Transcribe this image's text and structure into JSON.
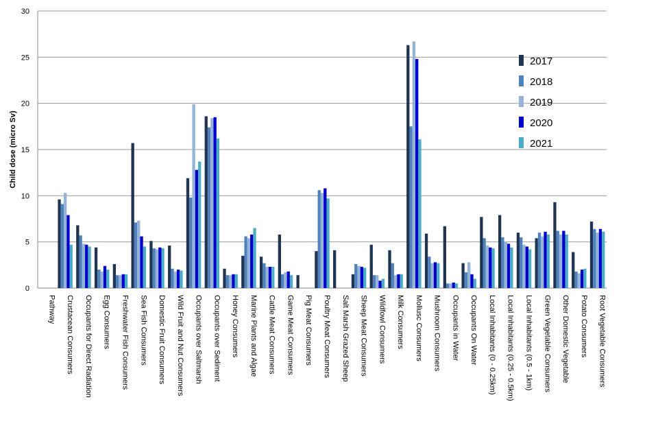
{
  "chart_data": {
    "type": "bar",
    "title": "",
    "xlabel": "",
    "ylabel": "Child  dose (micro Sv)",
    "ylim": [
      0,
      30
    ],
    "yticks": [
      0,
      5,
      10,
      15,
      20,
      25,
      30
    ],
    "grid": "horizontal",
    "legend_position": "right",
    "colors": [
      "#1f3552",
      "#4f81bd",
      "#95b3d7",
      "#0000cc",
      "#4bacc6"
    ],
    "categories": [
      "Pathway",
      "Crustacean Consumers",
      "Occupants for Direct Radiation",
      "Egg Consumers",
      "Freshwater Fish Consumers",
      "Sea Fish Consumers",
      "Domestic Fruit Consumers",
      "Wild Fruit and Nut Consumers",
      "Occupants over Saltmarsh",
      "Occupants over Sediment",
      "Honey Consumers",
      "Marine Plants and Algae",
      "Cattle Meat Consumers",
      "Game Meat Consumers",
      "Pig Meat Consumers",
      "Poultry Meat Consumers",
      "Salt Marsh Grazed Sheep",
      "Sheep Meat Consumers",
      "Wildfowl Consumers",
      "Milk Consumers",
      "Mollusc Consumers",
      "Mushroom Consumers",
      "Occupants in Water",
      "Occupants On Water",
      "Local Inhabitants (0 - 0.25km)",
      "Local Inhabitants (0.25 - 0.5km)",
      "Local Inhabitants (0.5 - 1km)",
      "Green Vegetable Consumers",
      "Other Domestic Vegetable",
      "Potato Consumers",
      "Root Vegetable Consumers"
    ],
    "series": [
      {
        "name": "2017",
        "values": [
          0,
          9.6,
          6.8,
          4.4,
          2.6,
          15.7,
          5.1,
          4.6,
          11.9,
          18.6,
          2.1,
          3.5,
          3.4,
          5.8,
          1.4,
          4.0,
          4.1,
          1.5,
          4.7,
          4.1,
          26.3,
          5.9,
          6.7,
          2.7,
          7.7,
          7.9,
          6.0,
          5.4,
          9.3,
          3.9,
          7.2
        ]
      },
      {
        "name": "2018",
        "values": [
          0,
          9.1,
          5.7,
          2.0,
          1.4,
          7.1,
          4.3,
          2.1,
          9.8,
          17.4,
          1.4,
          5.6,
          2.7,
          1.5,
          0,
          10.6,
          0,
          2.6,
          1.4,
          2.7,
          17.5,
          3.4,
          0.5,
          1.7,
          5.4,
          5.5,
          5.5,
          6.0,
          6.2,
          1.8,
          6.4
        ]
      },
      {
        "name": "2019",
        "values": [
          0,
          10.3,
          4.8,
          1.8,
          1.4,
          7.3,
          4.2,
          1.8,
          19.9,
          18.4,
          1.4,
          5.4,
          2.3,
          1.7,
          0,
          10.3,
          0,
          2.4,
          1.4,
          1.4,
          26.7,
          2.7,
          0.5,
          2.8,
          4.6,
          5.0,
          4.7,
          5.6,
          5.8,
          1.6,
          6.0
        ]
      },
      {
        "name": "2020",
        "values": [
          0,
          7.9,
          4.7,
          2.4,
          1.5,
          5.6,
          4.4,
          2.0,
          12.8,
          18.5,
          1.5,
          5.8,
          2.3,
          1.8,
          0,
          10.8,
          0,
          2.3,
          0.8,
          1.5,
          24.8,
          2.8,
          0.6,
          1.5,
          4.4,
          4.8,
          4.5,
          6.1,
          6.2,
          2.0,
          6.4
        ]
      },
      {
        "name": "2021",
        "values": [
          0,
          4.7,
          4.5,
          2.0,
          1.5,
          4.5,
          4.3,
          1.9,
          13.7,
          16.2,
          1.5,
          6.5,
          2.3,
          1.4,
          0,
          9.7,
          0,
          2.2,
          1.0,
          1.5,
          16.1,
          2.7,
          0.5,
          1.0,
          4.3,
          4.4,
          4.2,
          5.8,
          5.8,
          2.1,
          6.1
        ]
      }
    ]
  }
}
